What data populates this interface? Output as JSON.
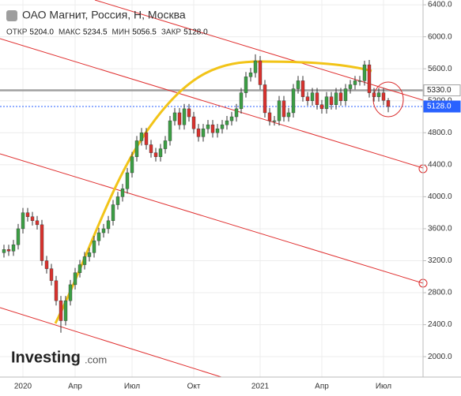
{
  "chart_data": {
    "type": "candlestick",
    "title": "ОАО Магнит, Россия, Н, Москва",
    "stats": [
      {
        "name": "ОТКР",
        "value": 5204,
        "label": "5204.0"
      },
      {
        "name": "МАКС",
        "value": 5234.5,
        "label": "5234.5"
      },
      {
        "name": "МИН",
        "value": 5056.5,
        "label": "5056.5"
      },
      {
        "name": "ЗАКР",
        "value": 5128,
        "label": "5128.0"
      }
    ],
    "logo": {
      "name": "Investing",
      "suffix": ".com"
    },
    "categories": [
      null,
      null,
      null,
      null,
      "2020",
      null,
      null,
      null,
      null,
      null,
      null,
      null,
      null,
      null,
      null,
      "Апр",
      null,
      null,
      null,
      null,
      null,
      null,
      null,
      null,
      null,
      null,
      null,
      "Июл",
      null,
      null,
      null,
      null,
      null,
      null,
      null,
      null,
      null,
      null,
      null,
      null,
      "Окт",
      null,
      null,
      null,
      null,
      null,
      null,
      null,
      null,
      null,
      null,
      null,
      null,
      null,
      "2021",
      null,
      null,
      null,
      null,
      null,
      null,
      null,
      null,
      null,
      null,
      null,
      null,
      "Апр",
      null,
      null,
      null,
      null,
      null,
      null,
      null,
      null,
      null,
      null,
      null,
      null,
      "Июл",
      null
    ],
    "open": [
      3300,
      3340,
      3320,
      3400,
      3600,
      3800,
      3750,
      3700,
      3650,
      3200,
      3100,
      2950,
      2700,
      2450,
      2700,
      2900,
      3050,
      3150,
      3250,
      3300,
      3450,
      3550,
      3600,
      3700,
      3900,
      4000,
      4100,
      4300,
      4500,
      4700,
      4800,
      4650,
      4550,
      4500,
      4600,
      4700,
      4950,
      5050,
      4900,
      5100,
      5000,
      4850,
      4750,
      4850,
      4900,
      4800,
      4850,
      4900,
      4950,
      5000,
      5100,
      5300,
      5500,
      5550,
      5700,
      5400,
      5050,
      4950,
      4950,
      5200,
      5000,
      5050,
      5350,
      5450,
      5250,
      5200,
      5300,
      5150,
      5100,
      5250,
      5150,
      5300,
      5200,
      5350,
      5400,
      5450,
      5450,
      5650,
      5300,
      5250,
      5300,
      5204
    ],
    "high": [
      3400,
      3400,
      3460,
      3660,
      3860,
      3860,
      3810,
      3760,
      3710,
      3260,
      3160,
      3010,
      2760,
      2760,
      2960,
      3110,
      3210,
      3310,
      3360,
      3510,
      3610,
      3660,
      3760,
      3960,
      4060,
      4160,
      4360,
      4560,
      4760,
      4860,
      4860,
      4710,
      4610,
      4660,
      4760,
      5010,
      5110,
      5110,
      5160,
      5160,
      5060,
      4910,
      4910,
      4960,
      4960,
      4910,
      4960,
      5010,
      5060,
      5160,
      5360,
      5560,
      5610,
      5780,
      5760,
      5460,
      5110,
      5010,
      5260,
      5260,
      5110,
      5410,
      5510,
      5510,
      5310,
      5360,
      5360,
      5210,
      5310,
      5310,
      5360,
      5360,
      5410,
      5460,
      5510,
      5510,
      5700,
      5710,
      5360,
      5360,
      5360,
      5234.5
    ],
    "low": [
      3240,
      3260,
      3260,
      3340,
      3540,
      3690,
      3640,
      3590,
      3140,
      3040,
      2890,
      2640,
      2300,
      2390,
      2640,
      2840,
      2990,
      3090,
      3190,
      3240,
      3390,
      3490,
      3540,
      3640,
      3840,
      3940,
      4040,
      4240,
      4440,
      4640,
      4590,
      4490,
      4440,
      4440,
      4540,
      4640,
      4890,
      4840,
      4840,
      4940,
      4790,
      4690,
      4690,
      4790,
      4740,
      4740,
      4790,
      4840,
      4890,
      4940,
      5040,
      5240,
      5440,
      5490,
      5340,
      4990,
      4890,
      4890,
      4890,
      4940,
      4940,
      4990,
      5290,
      5190,
      5140,
      5140,
      5090,
      5040,
      5040,
      5090,
      5090,
      5140,
      5140,
      5290,
      5340,
      5390,
      5390,
      5240,
      5190,
      5190,
      5144,
      5056.5
    ],
    "close": [
      3340,
      3320,
      3400,
      3600,
      3800,
      3750,
      3700,
      3650,
      3200,
      3100,
      2950,
      2700,
      2450,
      2700,
      2900,
      3050,
      3150,
      3250,
      3300,
      3450,
      3550,
      3600,
      3700,
      3900,
      4000,
      4100,
      4300,
      4500,
      4700,
      4800,
      4650,
      4550,
      4500,
      4600,
      4700,
      4950,
      5050,
      4900,
      5100,
      5000,
      4850,
      4750,
      4850,
      4900,
      4800,
      4850,
      4900,
      4950,
      5000,
      5100,
      5300,
      5500,
      5550,
      5700,
      5400,
      5050,
      4950,
      4950,
      5200,
      5000,
      5050,
      5350,
      5450,
      5250,
      5200,
      5300,
      5150,
      5100,
      5250,
      5150,
      5300,
      5200,
      5350,
      5400,
      5450,
      5450,
      5650,
      5300,
      5250,
      5300,
      5204,
      5128
    ],
    "up_color": "#3c9f45",
    "down_color": "#d9322e",
    "price_lines": [
      {
        "value": 5330,
        "label": "5330.0",
        "color": "#a0a0a0"
      },
      {
        "value": 5128,
        "label": "5128.0",
        "color": "#2962ff"
      }
    ],
    "ylim": [
      1745,
      6460
    ],
    "yticks": [
      {
        "value": 2000,
        "label": "2000.0"
      },
      {
        "value": 2400,
        "label": "2400.0"
      },
      {
        "value": 2800,
        "label": "2800.0"
      },
      {
        "value": 3200,
        "label": "3200.0"
      },
      {
        "value": 3600,
        "label": "3600.0"
      },
      {
        "value": 4000,
        "label": "4000.0"
      },
      {
        "value": 4400,
        "label": "4400.0"
      },
      {
        "value": 4800,
        "label": "4800.0"
      },
      {
        "value": 5200,
        "label": "5200.0"
      },
      {
        "value": 5600,
        "label": "5600.0"
      },
      {
        "value": 6000,
        "label": "6000.0"
      },
      {
        "value": 6400,
        "label": "6400.0"
      }
    ],
    "grid": true
  }
}
